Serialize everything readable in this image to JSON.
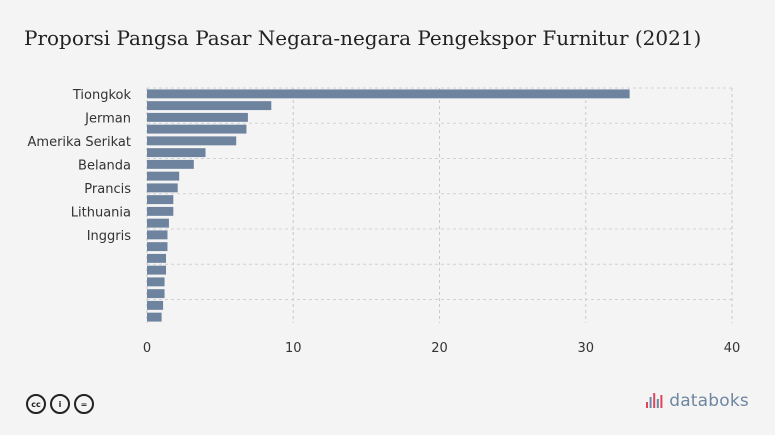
{
  "chart_data": {
    "type": "bar",
    "orientation": "horizontal",
    "title": "Proporsi Pangsa Pasar Negara-negara Pengekspor Furnitur (2021)",
    "xlabel": "",
    "ylabel": "",
    "categories": [
      "Tiongkok",
      "",
      "Jerman",
      "",
      "Amerika Serikat",
      "",
      "Belanda",
      "",
      "Prancis",
      "",
      "Lithuania",
      "",
      "Inggris",
      "",
      "",
      "",
      "",
      "",
      "",
      ""
    ],
    "values": [
      33,
      8.5,
      6.9,
      6.8,
      6.1,
      4.0,
      3.2,
      2.2,
      2.1,
      1.8,
      1.8,
      1.5,
      1.4,
      1.4,
      1.3,
      1.3,
      1.2,
      1.2,
      1.1,
      1.0
    ],
    "xlim": [
      0,
      40
    ],
    "xticks": [
      0,
      10,
      20,
      30,
      40
    ],
    "grid": true,
    "bar_color": "#6e849e"
  },
  "footer": {
    "license_icons": [
      "cc-icon",
      "attribution-icon",
      "no-derivatives-icon"
    ],
    "license_glyphs": [
      "cc",
      "i",
      "="
    ],
    "brand": "databoks",
    "brand_color": "#6e86a0",
    "brand_accent": "#e0455b"
  }
}
